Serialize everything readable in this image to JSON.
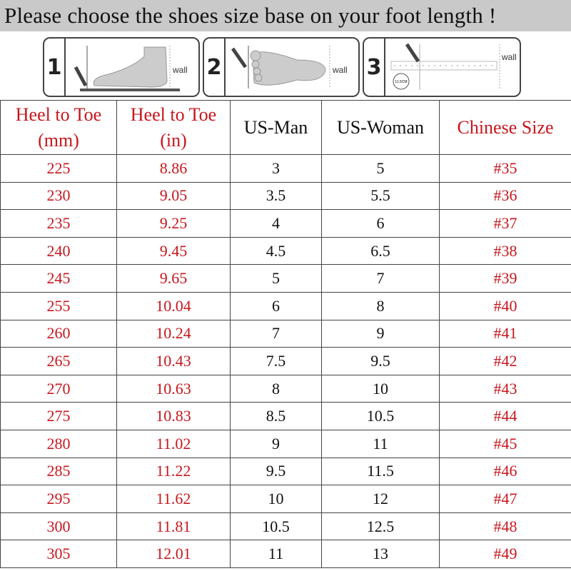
{
  "title": "Please choose the shoes size base on your foot length !",
  "steps": [
    {
      "number": "1",
      "label": "wall"
    },
    {
      "number": "2",
      "label": "wall"
    },
    {
      "number": "3",
      "label": "wall",
      "badge": "11.5CM"
    }
  ],
  "colors": {
    "red": "#c8161d",
    "title_bg": "#c9c9c9"
  },
  "table": {
    "headers": [
      {
        "line1": "Heel to Toe",
        "line2": "(mm)"
      },
      {
        "line1": "Heel to Toe",
        "line2": "(in)"
      },
      {
        "line1": "US-Man",
        "line2": ""
      },
      {
        "line1": "US-Woman",
        "line2": ""
      },
      {
        "line1": "Chinese Size",
        "line2": ""
      }
    ],
    "rows": [
      [
        "225",
        "8.86",
        "3",
        "5",
        "#35"
      ],
      [
        "230",
        "9.05",
        "3.5",
        "5.5",
        "#36"
      ],
      [
        "235",
        "9.25",
        "4",
        "6",
        "#37"
      ],
      [
        "240",
        "9.45",
        "4.5",
        "6.5",
        "#38"
      ],
      [
        "245",
        "9.65",
        "5",
        "7",
        "#39"
      ],
      [
        "255",
        "10.04",
        "6",
        "8",
        "#40"
      ],
      [
        "260",
        "10.24",
        "7",
        "9",
        "#41"
      ],
      [
        "265",
        "10.43",
        "7.5",
        "9.5",
        "#42"
      ],
      [
        "270",
        "10.63",
        "8",
        "10",
        "#43"
      ],
      [
        "275",
        "10.83",
        "8.5",
        "10.5",
        "#44"
      ],
      [
        "280",
        "11.02",
        "9",
        "11",
        "#45"
      ],
      [
        "285",
        "11.22",
        "9.5",
        "11.5",
        "#46"
      ],
      [
        "295",
        "11.62",
        "10",
        "12",
        "#47"
      ],
      [
        "300",
        "11.81",
        "10.5",
        "12.5",
        "#48"
      ],
      [
        "305",
        "12.01",
        "11",
        "13",
        "#49"
      ]
    ]
  }
}
